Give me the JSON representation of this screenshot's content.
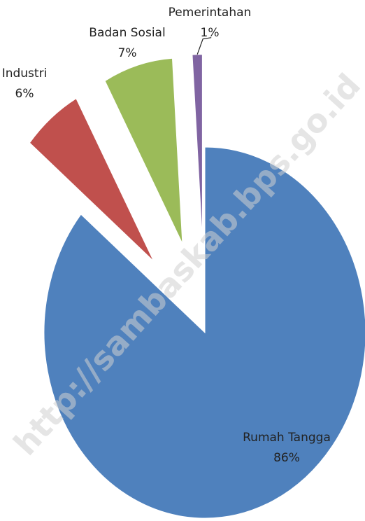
{
  "chart_data": {
    "type": "pie",
    "categories": [
      "Rumah Tangga",
      "Industri",
      "Badan Sosial",
      "Pemerintahan"
    ],
    "values": [
      86,
      6,
      7,
      1
    ],
    "value_labels": [
      "86%",
      "6%",
      "7%",
      "1%"
    ],
    "colors": [
      "#4f81bd",
      "#c0504d",
      "#9bbb59",
      "#8064a2"
    ],
    "exploded": true,
    "watermark": "http://sambaskab.bps.go.id"
  }
}
